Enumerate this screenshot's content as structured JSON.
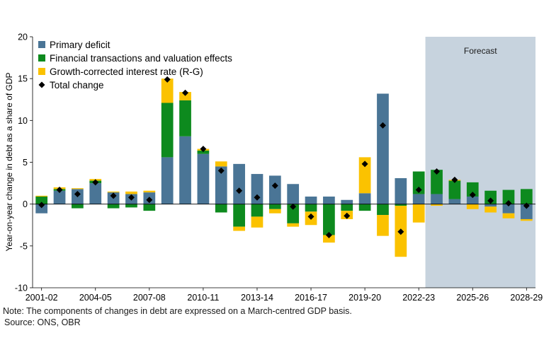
{
  "chart_data": {
    "type": "bar",
    "stacked": true,
    "ylabel": "Year-on-year change in debt as a share of GDP",
    "ylim": [
      -10,
      20
    ],
    "yticks": [
      -10,
      -5,
      0,
      5,
      10,
      15,
      20
    ],
    "categories": [
      "2001-02",
      "2002-03",
      "2003-04",
      "2004-05",
      "2005-06",
      "2006-07",
      "2007-08",
      "2008-09",
      "2009-10",
      "2010-11",
      "2011-12",
      "2012-13",
      "2013-14",
      "2014-15",
      "2015-16",
      "2016-17",
      "2017-18",
      "2018-19",
      "2019-20",
      "2020-21",
      "2021-22",
      "2022-23",
      "2023-24",
      "2024-25",
      "2025-26",
      "2026-27",
      "2027-28",
      "2028-29"
    ],
    "x_tick_labels": [
      "2001-02",
      "2004-05",
      "2007-08",
      "2010-11",
      "2013-14",
      "2016-17",
      "2019-20",
      "2022-23",
      "2025-26",
      "2028-29"
    ],
    "forecast": {
      "label": "Forecast",
      "from_category": "2023-24",
      "color": "#c7d3de"
    },
    "series": [
      {
        "name": "Primary deficit",
        "color": "#4a7596",
        "values": [
          -1.1,
          1.6,
          1.8,
          2.5,
          1.4,
          1.2,
          1.4,
          5.6,
          8.1,
          6.0,
          4.5,
          4.8,
          3.6,
          3.4,
          2.4,
          0.9,
          0.9,
          0.5,
          1.3,
          13.2,
          3.1,
          1.2,
          1.2,
          0.6,
          0.9,
          -0.3,
          -1.1,
          -1.8
        ]
      },
      {
        "name": "Financial transactions and valuation effects",
        "color": "#0d8a1e",
        "values": [
          0.9,
          0.2,
          -0.5,
          0.3,
          -0.5,
          -0.4,
          -0.8,
          6.5,
          4.3,
          0.4,
          -1.0,
          -2.7,
          -1.5,
          -0.6,
          -2.3,
          -0.9,
          -3.7,
          -0.8,
          -0.8,
          -1.3,
          -0.2,
          2.7,
          2.9,
          2.2,
          1.7,
          1.6,
          1.7,
          1.8
        ]
      },
      {
        "name": "Growth-corrected interest rate (R-G)",
        "color": "#fbc200",
        "values": [
          0.1,
          0.2,
          0.1,
          0.2,
          0.1,
          0.3,
          0.2,
          2.9,
          1.0,
          0.2,
          0.6,
          -0.5,
          -1.3,
          -0.5,
          -0.4,
          -1.6,
          -0.9,
          -1.0,
          4.3,
          -2.5,
          -6.1,
          -2.2,
          -0.2,
          0.1,
          -0.6,
          -0.7,
          -0.6,
          -0.2
        ]
      }
    ],
    "total_change": {
      "name": "Total change",
      "color": "#000000",
      "values": [
        -0.1,
        1.7,
        1.2,
        2.6,
        1.0,
        0.8,
        0.5,
        14.9,
        13.3,
        6.6,
        4.0,
        1.6,
        0.8,
        2.2,
        -0.3,
        -1.5,
        -3.7,
        -1.4,
        4.8,
        9.4,
        -3.3,
        1.7,
        3.9,
        2.9,
        1.1,
        0.4,
        0.1,
        -0.2
      ]
    },
    "legend_placement": "top-left",
    "grid": false
  },
  "footer": {
    "note": "Note: The components of changes in debt are expressed on a March-centred GDP basis.",
    "source": "Source: ONS, OBR"
  }
}
